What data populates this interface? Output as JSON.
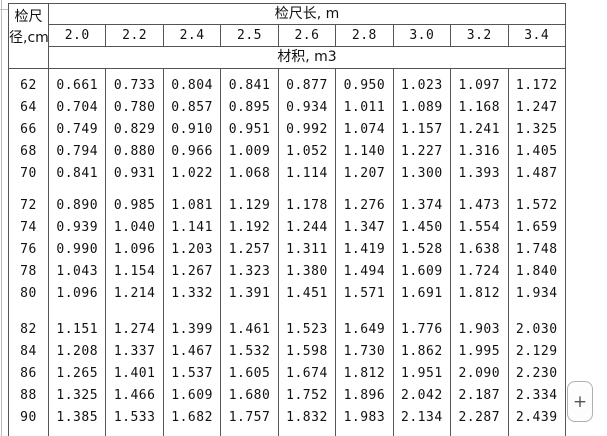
{
  "table": {
    "corner_header_line1": "检尺",
    "corner_header_line2": "径,cm",
    "length_header": "检尺长, m",
    "volume_header": "材积, m3",
    "length_columns": [
      "2.0",
      "2.2",
      "2.4",
      "2.5",
      "2.6",
      "2.8",
      "3.0",
      "3.2",
      "3.4"
    ],
    "row_groups": [
      {
        "rows": [
          {
            "diameter": "62",
            "values": [
              "0.661",
              "0.733",
              "0.804",
              "0.841",
              "0.877",
              "0.950",
              "1.023",
              "1.097",
              "1.172"
            ]
          },
          {
            "diameter": "64",
            "values": [
              "0.704",
              "0.780",
              "0.857",
              "0.895",
              "0.934",
              "1.011",
              "1.089",
              "1.168",
              "1.247"
            ]
          },
          {
            "diameter": "66",
            "values": [
              "0.749",
              "0.829",
              "0.910",
              "0.951",
              "0.992",
              "1.074",
              "1.157",
              "1.241",
              "1.325"
            ]
          },
          {
            "diameter": "68",
            "values": [
              "0.794",
              "0.880",
              "0.966",
              "1.009",
              "1.052",
              "1.140",
              "1.227",
              "1.316",
              "1.405"
            ]
          },
          {
            "diameter": "70",
            "values": [
              "0.841",
              "0.931",
              "1.022",
              "1.068",
              "1.114",
              "1.207",
              "1.300",
              "1.393",
              "1.487"
            ]
          }
        ]
      },
      {
        "rows": [
          {
            "diameter": "72",
            "values": [
              "0.890",
              "0.985",
              "1.081",
              "1.129",
              "1.178",
              "1.276",
              "1.374",
              "1.473",
              "1.572"
            ]
          },
          {
            "diameter": "74",
            "values": [
              "0.939",
              "1.040",
              "1.141",
              "1.192",
              "1.244",
              "1.347",
              "1.450",
              "1.554",
              "1.659"
            ]
          },
          {
            "diameter": "76",
            "values": [
              "0.990",
              "1.096",
              "1.203",
              "1.257",
              "1.311",
              "1.419",
              "1.528",
              "1.638",
              "1.748"
            ]
          },
          {
            "diameter": "78",
            "values": [
              "1.043",
              "1.154",
              "1.267",
              "1.323",
              "1.380",
              "1.494",
              "1.609",
              "1.724",
              "1.840"
            ]
          },
          {
            "diameter": "80",
            "values": [
              "1.096",
              "1.214",
              "1.332",
              "1.391",
              "1.451",
              "1.571",
              "1.691",
              "1.812",
              "1.934"
            ]
          }
        ]
      },
      {
        "rows": [
          {
            "diameter": "82",
            "values": [
              "1.151",
              "1.274",
              "1.399",
              "1.461",
              "1.523",
              "1.649",
              "1.776",
              "1.903",
              "2.030"
            ]
          },
          {
            "diameter": "84",
            "values": [
              "1.208",
              "1.337",
              "1.467",
              "1.532",
              "1.598",
              "1.730",
              "1.862",
              "1.995",
              "2.129"
            ]
          },
          {
            "diameter": "86",
            "values": [
              "1.265",
              "1.401",
              "1.537",
              "1.605",
              "1.674",
              "1.812",
              "1.951",
              "2.090",
              "2.230"
            ]
          },
          {
            "diameter": "88",
            "values": [
              "1.325",
              "1.466",
              "1.609",
              "1.680",
              "1.752",
              "1.896",
              "2.042",
              "2.187",
              "2.334"
            ]
          },
          {
            "diameter": "90",
            "values": [
              "1.385",
              "1.533",
              "1.682",
              "1.757",
              "1.832",
              "1.983",
              "2.134",
              "2.287",
              "2.439"
            ]
          }
        ]
      }
    ]
  },
  "controls": {
    "expand_button_label": "+"
  },
  "colors": {
    "table_border": "#555555",
    "button_border": "#b0b0b0",
    "edge_color": "#bdbdbd",
    "text_color": "#111111"
  }
}
